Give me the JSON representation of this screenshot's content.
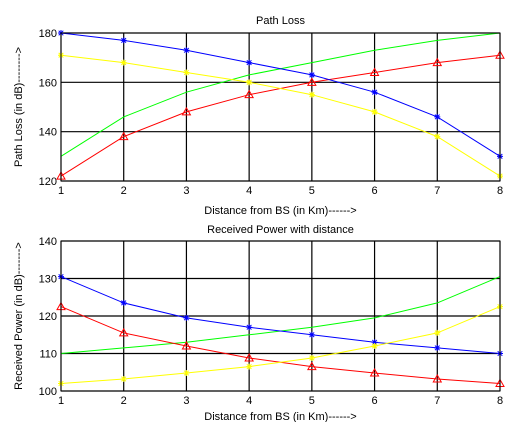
{
  "chart_data": [
    {
      "type": "line",
      "title": "Path Loss",
      "xlabel": "Distance from BS (in Km)------>",
      "ylabel": "Path Loss (in dB)-------->",
      "x": [
        1,
        2,
        3,
        4,
        5,
        6,
        7,
        8
      ],
      "xlim": [
        1,
        8
      ],
      "ylim": [
        120,
        180
      ],
      "xticks": [
        1,
        2,
        3,
        4,
        5,
        6,
        7,
        8
      ],
      "yticks": [
        120,
        140,
        160,
        180
      ],
      "grid": true,
      "series": [
        {
          "color": "#00ff00",
          "marker": "none",
          "values": [
            130,
            146,
            156,
            163,
            168,
            173,
            177,
            180
          ]
        },
        {
          "color": "#ff0000",
          "marker": "triangle",
          "values": [
            122,
            138,
            148,
            155,
            160,
            164,
            168,
            171
          ]
        },
        {
          "color": "#0000ff",
          "marker": "star",
          "values": [
            180,
            177,
            173,
            168,
            163,
            156,
            146,
            130
          ]
        },
        {
          "color": "#ffff00",
          "marker": "star",
          "values": [
            171,
            168,
            164,
            160,
            155,
            148,
            138,
            122
          ]
        }
      ]
    },
    {
      "type": "line",
      "title": "Received Power with distance",
      "xlabel": "Distance from BS (in Km)------>",
      "ylabel": "Received Power (in dB)------->",
      "x": [
        1,
        2,
        3,
        4,
        5,
        6,
        7,
        8
      ],
      "xlim": [
        1,
        8
      ],
      "ylim": [
        100,
        140
      ],
      "xticks": [
        1,
        2,
        3,
        4,
        5,
        6,
        7,
        8
      ],
      "yticks": [
        100,
        110,
        120,
        130,
        140
      ],
      "grid": true,
      "series": [
        {
          "color": "#00ff00",
          "marker": "none",
          "values": [
            110,
            111.5,
            113,
            115,
            117,
            119.5,
            123.5,
            130.5
          ]
        },
        {
          "color": "#0000ff",
          "marker": "star",
          "values": [
            130.5,
            123.5,
            119.5,
            117,
            115,
            113,
            111.5,
            110
          ]
        },
        {
          "color": "#ff0000",
          "marker": "triangle",
          "values": [
            122.5,
            115.5,
            112,
            108.8,
            106.5,
            104.8,
            103.2,
            102
          ]
        },
        {
          "color": "#ffff00",
          "marker": "star",
          "values": [
            102,
            103.2,
            104.8,
            106.5,
            108.8,
            112,
            115.5,
            122.5
          ]
        }
      ]
    }
  ]
}
